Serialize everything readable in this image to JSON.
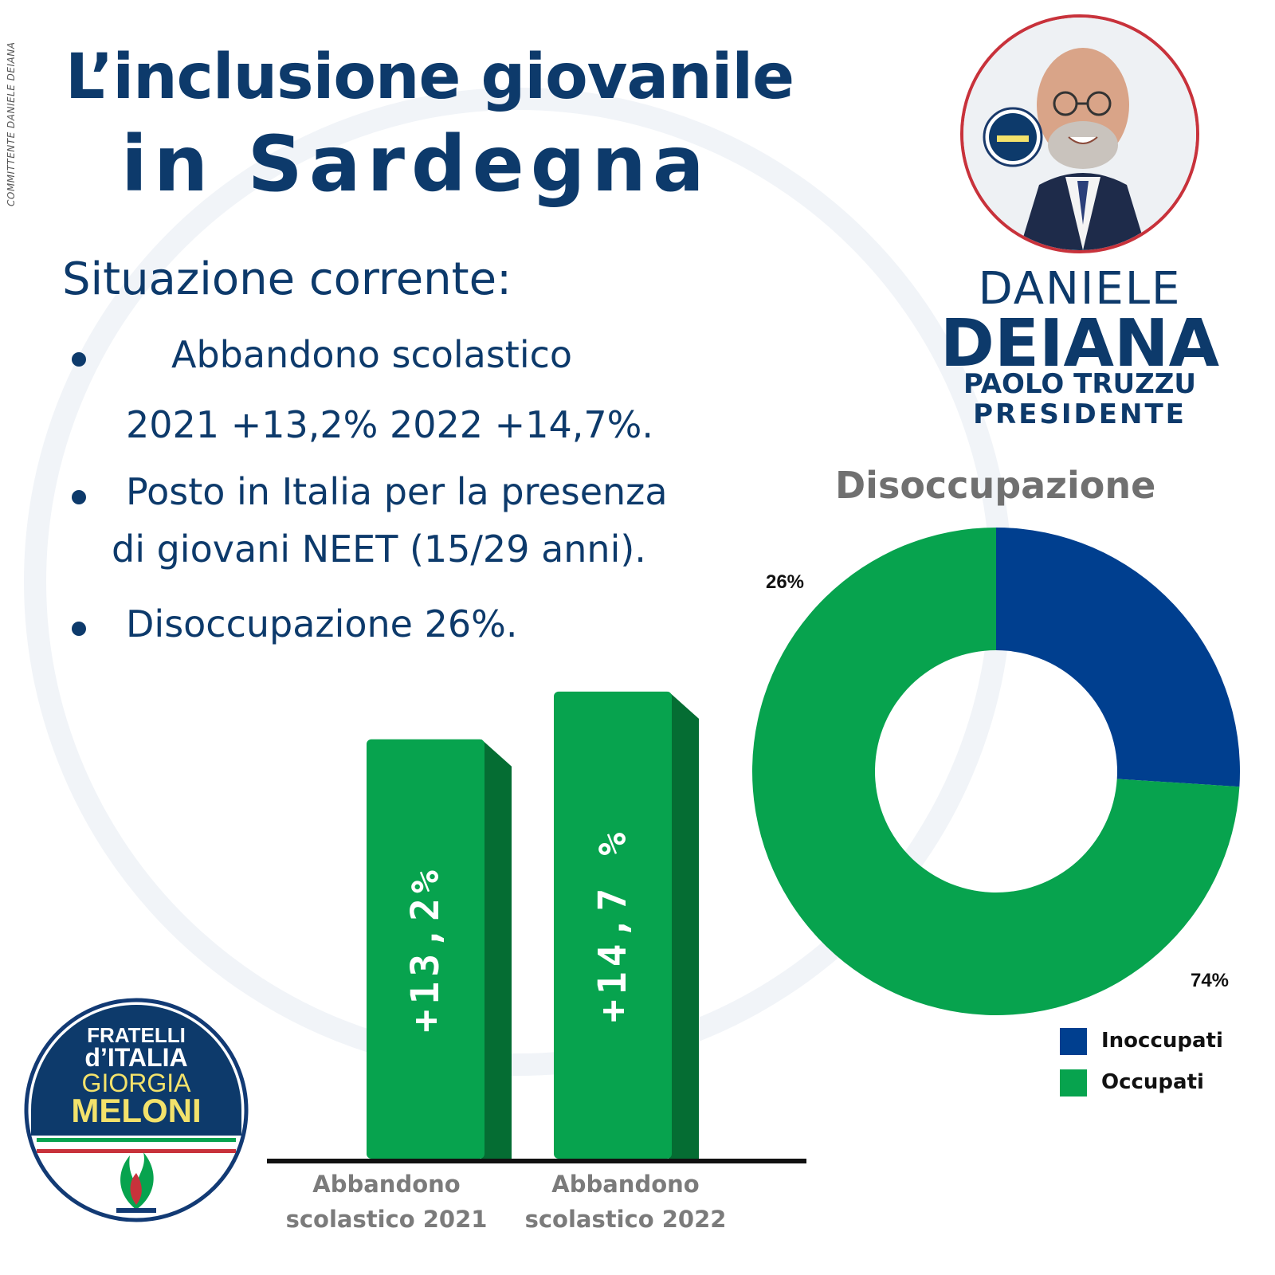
{
  "committente": "COMMITTENTE DANIELE DEIANA",
  "title": {
    "line1": "L’inclusione giovanile",
    "line2": "in Sardegna"
  },
  "content": {
    "heading": "Situazione corrente:",
    "bullet1": "Abbandono scolastico",
    "bullet1_values": "2021 +13,2%     2022 +14,7%.",
    "bullet2_line1": "Posto in Italia per la presenza",
    "bullet2_line2": "di giovani NEET (15/29 anni).",
    "bullet3": "Disoccupazione 26%."
  },
  "candidate": {
    "first_name": "DANIELE",
    "last_name": "DEIANA",
    "coalition_line1": "PAOLO TRUZZU",
    "coalition_line2": "PRESIDENTE"
  },
  "logo": {
    "line1": "FRATELLI",
    "line2": "d’ITALIA",
    "line3": "GIORGIA",
    "line4": "MELONI"
  },
  "colors": {
    "navy": "#0d3a6b",
    "green": "#07a34e",
    "green_dark": "#056d33",
    "blue": "#003f8f",
    "grey_text": "#707070"
  },
  "chart_data": [
    {
      "type": "bar",
      "categories": [
        "Abbandono scolastico 2021",
        "Abbandono scolastico 2022"
      ],
      "values": [
        13.2,
        14.7
      ],
      "value_labels": [
        "+13,2%",
        "+14,7 %"
      ],
      "ylim": [
        0,
        16
      ]
    },
    {
      "type": "pie",
      "title": "Disoccupazione",
      "labels": [
        "Inoccupati",
        "Occupati"
      ],
      "values": [
        26,
        74
      ],
      "value_labels": [
        "26%",
        "74%"
      ],
      "colors": [
        "#003f8f",
        "#07a34e"
      ],
      "legend": "bottom-right"
    }
  ]
}
